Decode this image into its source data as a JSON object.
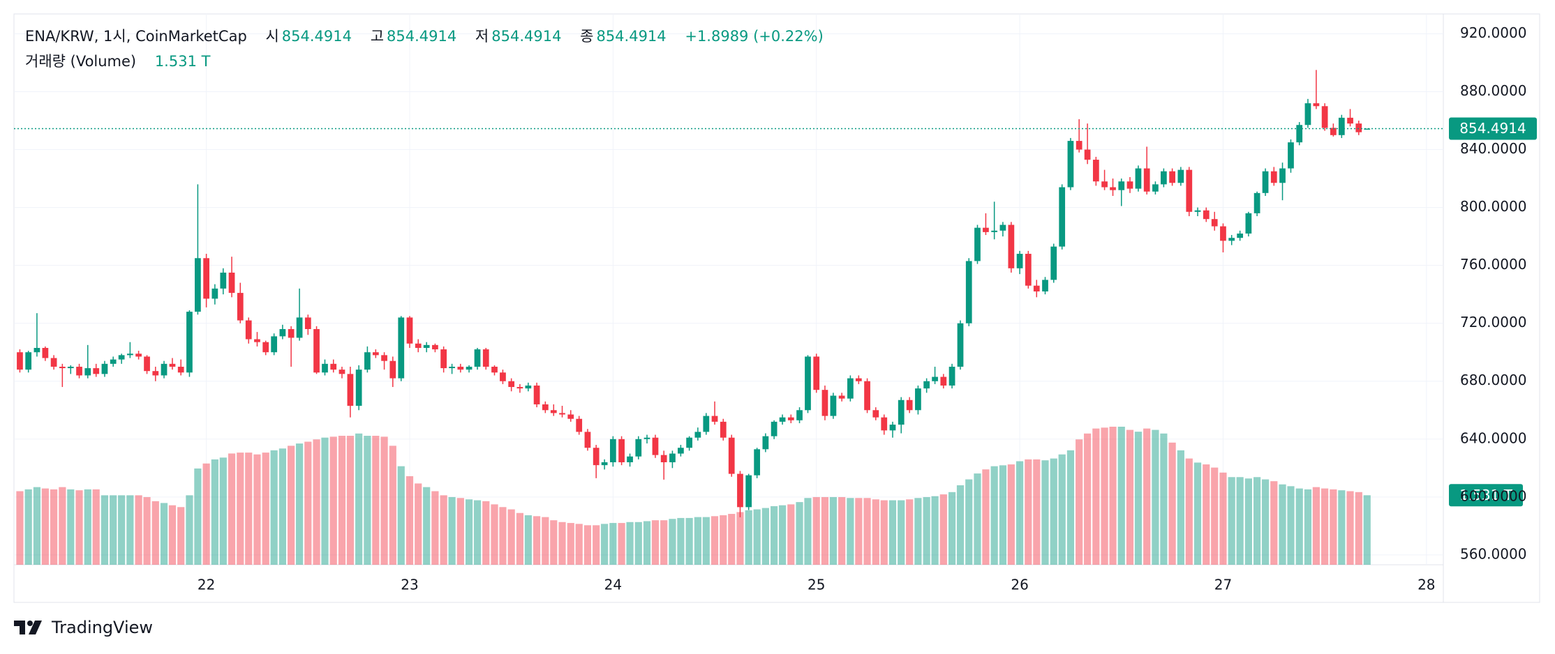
{
  "chart_data": {
    "type": "candlestick",
    "title": "ENA/KRW, 1시, CoinMarketCap",
    "ohlc_labels": [
      "시",
      "고",
      "저",
      "종"
    ],
    "change": "+1.8989 (+0.22%)",
    "up_color": "#089981",
    "down_color": "#f23645",
    "grid": true,
    "source": "TradingView",
    "xlim": [
      21.054,
      28.083
    ],
    "xticks": [
      22,
      23,
      24,
      25,
      26,
      27,
      28
    ],
    "ylim": [
      553.2,
      933.7
    ],
    "yticks": [
      {
        "value": 560,
        "label": "560.0000"
      },
      {
        "value": 600,
        "label": "600.0000"
      },
      {
        "value": 640,
        "label": "640.0000"
      },
      {
        "value": 680,
        "label": "680.0000"
      },
      {
        "value": 720,
        "label": "720.0000"
      },
      {
        "value": 760,
        "label": "760.0000"
      },
      {
        "value": 800,
        "label": "800.0000"
      },
      {
        "value": 840,
        "label": "840.0000"
      },
      {
        "value": 880,
        "label": "880.0000"
      },
      {
        "value": 920,
        "label": "920.0000"
      }
    ],
    "x": [
      21.083,
      21.125,
      21.167,
      21.208,
      21.25,
      21.292,
      21.333,
      21.375,
      21.417,
      21.458,
      21.5,
      21.542,
      21.583,
      21.625,
      21.667,
      21.708,
      21.75,
      21.792,
      21.833,
      21.875,
      21.917,
      21.958,
      22.0,
      22.042,
      22.083,
      22.125,
      22.167,
      22.208,
      22.25,
      22.292,
      22.333,
      22.375,
      22.417,
      22.458,
      22.5,
      22.542,
      22.583,
      22.625,
      22.667,
      22.708,
      22.75,
      22.792,
      22.833,
      22.875,
      22.917,
      22.958,
      23.0,
      23.042,
      23.083,
      23.125,
      23.167,
      23.208,
      23.25,
      23.292,
      23.333,
      23.375,
      23.417,
      23.458,
      23.5,
      23.542,
      23.583,
      23.625,
      23.667,
      23.708,
      23.75,
      23.792,
      23.833,
      23.875,
      23.917,
      23.958,
      24.0,
      24.042,
      24.083,
      24.125,
      24.167,
      24.208,
      24.25,
      24.292,
      24.333,
      24.375,
      24.417,
      24.458,
      24.5,
      24.542,
      24.583,
      24.625,
      24.667,
      24.708,
      24.75,
      24.792,
      24.833,
      24.875,
      24.917,
      24.958,
      25.0,
      25.042,
      25.083,
      25.125,
      25.167,
      25.208,
      25.25,
      25.292,
      25.333,
      25.375,
      25.417,
      25.458,
      25.5,
      25.542,
      25.583,
      25.625,
      25.667,
      25.708,
      25.75,
      25.792,
      25.833,
      25.875,
      25.917,
      25.958,
      26.0,
      26.042,
      26.083,
      26.125,
      26.167,
      26.208,
      26.25,
      26.292,
      26.333,
      26.375,
      26.417,
      26.458,
      26.5,
      26.542,
      26.583,
      26.625,
      26.667,
      26.708,
      26.75,
      26.792,
      26.833,
      26.875,
      26.917,
      26.958,
      27.0,
      27.042,
      27.083,
      27.125,
      27.167,
      27.208,
      27.25,
      27.292,
      27.333,
      27.375,
      27.417,
      27.458,
      27.5,
      27.542,
      27.583,
      27.625,
      27.667,
      27.708
    ],
    "open": [
      700,
      688,
      700,
      703,
      696,
      690,
      689,
      690,
      684,
      689,
      685,
      692,
      695,
      698,
      699,
      697,
      687,
      684,
      692,
      690,
      686,
      728,
      765,
      737,
      744,
      755,
      741,
      722,
      709,
      707,
      700,
      711,
      716,
      710,
      724,
      716,
      686,
      692,
      688,
      685,
      663,
      688,
      700,
      698,
      694,
      682,
      724,
      706,
      703,
      705,
      702,
      689,
      690,
      688,
      690,
      702,
      690,
      686,
      680,
      676,
      675,
      677,
      664,
      660,
      658,
      657,
      654,
      645,
      634,
      622,
      624,
      640,
      624,
      628,
      640,
      641,
      629,
      624,
      630,
      634,
      641,
      645,
      656,
      652,
      641,
      616,
      593,
      615,
      633,
      642,
      652,
      655,
      653,
      660,
      697,
      674,
      656,
      670,
      668,
      682,
      680,
      660,
      655,
      646,
      650,
      667,
      660,
      675,
      680,
      683,
      677,
      690,
      720,
      763,
      786,
      783,
      784,
      788,
      758,
      768,
      746,
      742,
      750,
      773,
      814,
      846,
      840,
      833,
      818,
      814,
      812,
      818,
      813,
      827,
      811,
      816,
      825,
      817,
      826,
      797,
      798,
      792,
      787,
      777,
      779,
      782,
      796,
      810,
      825,
      817,
      827,
      845,
      857,
      872,
      870,
      855,
      850,
      862,
      858,
      854.4914
    ],
    "high": [
      702,
      701,
      727,
      704,
      698,
      692,
      691,
      692,
      705,
      692,
      694,
      697,
      699,
      707,
      701,
      698,
      690,
      694,
      696,
      695,
      729,
      816,
      768,
      747,
      758,
      766,
      748,
      724,
      714,
      708,
      713,
      719,
      718,
      744,
      726,
      718,
      695,
      695,
      690,
      690,
      691,
      704,
      702,
      700,
      697,
      725,
      725,
      709,
      707,
      706,
      704,
      692,
      692,
      691,
      703,
      703,
      691,
      688,
      682,
      678,
      679,
      679,
      666,
      664,
      663,
      660,
      656,
      647,
      636,
      626,
      642,
      642,
      630,
      642,
      643,
      643,
      632,
      632,
      636,
      642,
      648,
      658,
      666,
      654,
      643,
      618,
      616,
      634,
      644,
      653,
      657,
      657,
      662,
      698,
      699,
      677,
      672,
      672,
      684,
      684,
      682,
      662,
      657,
      652,
      669,
      669,
      677,
      682,
      690,
      685,
      692,
      722,
      765,
      788,
      796,
      804,
      790,
      790,
      770,
      770,
      750,
      752,
      775,
      816,
      848,
      861,
      858,
      835,
      826,
      820,
      820,
      821,
      829,
      842,
      818,
      827,
      827,
      828,
      828,
      800,
      800,
      797,
      789,
      781,
      784,
      797,
      811,
      827,
      828,
      831,
      847,
      859,
      875,
      895,
      872,
      858,
      864,
      868,
      860,
      854.4914
    ],
    "low": [
      686,
      686,
      697,
      694,
      688,
      676,
      685,
      682,
      682,
      683,
      683,
      690,
      692,
      696,
      695,
      685,
      680,
      682,
      688,
      684,
      683,
      726,
      731,
      733,
      740,
      738,
      720,
      706,
      704,
      698,
      698,
      709,
      690,
      708,
      712,
      685,
      684,
      686,
      682,
      655,
      660,
      686,
      696,
      688,
      676,
      680,
      703,
      700,
      700,
      700,
      686,
      685,
      686,
      686,
      688,
      688,
      684,
      678,
      673,
      672,
      673,
      662,
      658,
      656,
      655,
      652,
      643,
      632,
      613,
      619,
      621,
      622,
      621,
      626,
      637,
      627,
      612,
      620,
      628,
      632,
      639,
      643,
      650,
      639,
      614,
      586,
      591,
      613,
      631,
      640,
      650,
      651,
      651,
      658,
      672,
      653,
      654,
      666,
      666,
      678,
      658,
      653,
      643,
      641,
      644,
      658,
      657,
      672,
      678,
      675,
      675,
      688,
      718,
      761,
      781,
      778,
      780,
      755,
      754,
      744,
      738,
      740,
      748,
      771,
      812,
      838,
      830,
      815,
      812,
      808,
      801,
      810,
      811,
      809,
      809,
      814,
      815,
      815,
      794,
      794,
      790,
      784,
      769,
      774,
      777,
      780,
      794,
      808,
      815,
      805,
      824,
      843,
      855,
      868,
      853,
      849,
      848,
      856,
      850,
      854.4914
    ],
    "close": [
      688,
      700,
      703,
      696,
      690,
      689,
      690,
      684,
      689,
      685,
      692,
      695,
      698,
      699,
      697,
      687,
      684,
      692,
      690,
      686,
      728,
      765,
      737,
      744,
      755,
      741,
      722,
      709,
      707,
      700,
      711,
      716,
      710,
      724,
      716,
      686,
      692,
      688,
      685,
      663,
      688,
      700,
      698,
      694,
      682,
      724,
      706,
      703,
      705,
      702,
      689,
      690,
      688,
      690,
      702,
      690,
      686,
      680,
      676,
      675,
      677,
      664,
      660,
      658,
      657,
      654,
      645,
      634,
      622,
      624,
      640,
      624,
      628,
      640,
      641,
      629,
      624,
      630,
      634,
      641,
      645,
      656,
      652,
      641,
      616,
      593,
      615,
      633,
      642,
      652,
      655,
      653,
      660,
      697,
      674,
      656,
      670,
      668,
      682,
      680,
      660,
      655,
      646,
      650,
      667,
      660,
      675,
      680,
      683,
      677,
      690,
      720,
      763,
      786,
      783,
      784,
      788,
      758,
      768,
      746,
      742,
      750,
      773,
      814,
      846,
      840,
      833,
      818,
      814,
      812,
      818,
      813,
      827,
      811,
      816,
      825,
      817,
      826,
      797,
      798,
      792,
      787,
      777,
      779,
      782,
      796,
      810,
      825,
      817,
      827,
      845,
      857,
      872,
      870,
      855,
      850,
      862,
      858,
      852,
      854.4914
    ],
    "volume": {
      "name": "거래량 (Volume)",
      "value_label": "1.531 T",
      "values": [
        1.62,
        1.66,
        1.71,
        1.68,
        1.66,
        1.71,
        1.66,
        1.64,
        1.66,
        1.66,
        1.53,
        1.53,
        1.53,
        1.53,
        1.53,
        1.49,
        1.4,
        1.36,
        1.31,
        1.27,
        1.53,
        2.12,
        2.23,
        2.32,
        2.36,
        2.45,
        2.47,
        2.47,
        2.43,
        2.47,
        2.52,
        2.56,
        2.62,
        2.67,
        2.71,
        2.76,
        2.8,
        2.82,
        2.84,
        2.84,
        2.89,
        2.84,
        2.84,
        2.82,
        2.62,
        2.17,
        1.95,
        1.79,
        1.71,
        1.62,
        1.53,
        1.49,
        1.47,
        1.44,
        1.42,
        1.4,
        1.33,
        1.27,
        1.22,
        1.14,
        1.09,
        1.07,
        1.05,
        0.98,
        0.94,
        0.92,
        0.9,
        0.87,
        0.87,
        0.9,
        0.92,
        0.92,
        0.94,
        0.94,
        0.96,
        0.98,
        0.98,
        1.01,
        1.03,
        1.03,
        1.05,
        1.05,
        1.07,
        1.09,
        1.12,
        1.16,
        1.2,
        1.22,
        1.25,
        1.29,
        1.31,
        1.33,
        1.38,
        1.47,
        1.49,
        1.49,
        1.49,
        1.49,
        1.47,
        1.47,
        1.47,
        1.44,
        1.42,
        1.42,
        1.42,
        1.44,
        1.47,
        1.49,
        1.51,
        1.55,
        1.6,
        1.75,
        1.88,
        2.01,
        2.1,
        2.17,
        2.19,
        2.21,
        2.28,
        2.32,
        2.32,
        2.3,
        2.34,
        2.43,
        2.52,
        2.76,
        2.89,
        3.0,
        3.02,
        3.04,
        3.04,
        2.97,
        2.93,
        3.0,
        2.97,
        2.89,
        2.69,
        2.52,
        2.34,
        2.25,
        2.21,
        2.14,
        2.03,
        1.93,
        1.93,
        1.9,
        1.93,
        1.88,
        1.84,
        1.77,
        1.73,
        1.68,
        1.66,
        1.71,
        1.68,
        1.66,
        1.64,
        1.62,
        1.6,
        1.531
      ]
    }
  }
}
